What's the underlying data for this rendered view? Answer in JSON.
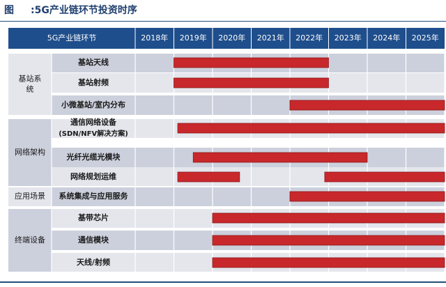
{
  "figure": {
    "label": "图",
    "title": ":5G产业链环节投资时序"
  },
  "colors": {
    "header_bg": "#1f4e8c",
    "row_light": "#e4e6ec",
    "row_dark": "#ccd0dc",
    "bar": "#c8282b",
    "grid": "#ffffff"
  },
  "chart_data": {
    "type": "gantt",
    "header_label": "5G产业链环节",
    "years": [
      "2018年",
      "2019年",
      "2020年",
      "2021年",
      "2022年",
      "2023年",
      "2024年",
      "2025年"
    ],
    "groups": [
      {
        "name": "基站系统",
        "rows": [
          0,
          1,
          2
        ]
      },
      {
        "name": "网络架构",
        "rows": [
          3,
          4,
          5
        ]
      },
      {
        "name": "应用场景",
        "rows": [
          6,
          6
        ]
      },
      {
        "name": "终端设备",
        "rows": [
          7,
          9
        ]
      }
    ],
    "rows": [
      {
        "label": "基站天线",
        "bars": [
          {
            "start": 2019.0,
            "end": 2023.0
          }
        ]
      },
      {
        "label": "基站射频",
        "bars": [
          {
            "start": 2019.0,
            "end": 2023.0
          }
        ]
      },
      {
        "label": "小微基站/室内分布",
        "bars": [
          {
            "start": 2022.0,
            "end": 2026.0
          }
        ]
      },
      {
        "label": "通信网络设备\n(SDN/NFV解决方案)",
        "bars": [
          {
            "start": 2019.1,
            "end": 2026.0
          }
        ]
      },
      {
        "label": "光纤光缆光模块",
        "bars": [
          {
            "start": 2019.5,
            "end": 2024.0
          }
        ]
      },
      {
        "label": "网络规划运维",
        "bars": [
          {
            "start": 2019.1,
            "end": 2020.7
          },
          {
            "start": 2022.9,
            "end": 2026.0
          }
        ]
      },
      {
        "label": "系统集成与应用服务",
        "bars": [
          {
            "start": 2022.0,
            "end": 2026.0
          }
        ]
      },
      {
        "label": "基带芯片",
        "bars": [
          {
            "start": 2020.0,
            "end": 2026.0
          }
        ]
      },
      {
        "label": "通信模块",
        "bars": [
          {
            "start": 2020.0,
            "end": 2026.0
          }
        ]
      },
      {
        "label": "天线/射频",
        "bars": [
          {
            "start": 2020.0,
            "end": 2026.0
          }
        ]
      }
    ]
  }
}
